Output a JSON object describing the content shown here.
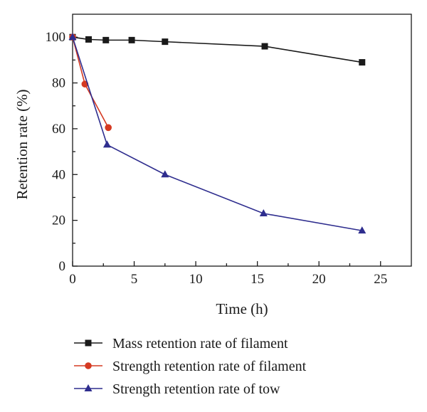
{
  "chart_data": {
    "type": "line",
    "title": "",
    "xlabel": "Time (h)",
    "ylabel": "Retention rate (%)",
    "xlim": [
      0,
      27.5
    ],
    "ylim": [
      0,
      110
    ],
    "xticks": [
      0,
      5,
      10,
      15,
      20,
      25
    ],
    "yticks": [
      0,
      20,
      40,
      60,
      80,
      100
    ],
    "xtick_labels": [
      "0",
      "5",
      "10",
      "15",
      "20",
      "25"
    ],
    "ytick_labels": [
      "0",
      "20",
      "40",
      "60",
      "80",
      "100"
    ],
    "grid": false,
    "legend_position": "bottom",
    "series": [
      {
        "name": "Mass retention rate of filament",
        "color": "#1a1a1a",
        "marker": "square",
        "x": [
          0,
          1.3,
          2.7,
          4.8,
          7.5,
          15.6,
          23.5
        ],
        "y": [
          100,
          99,
          98.7,
          98.7,
          98,
          96,
          89
        ]
      },
      {
        "name": "Strength retention rate of filament",
        "color": "#d53a22",
        "marker": "circle",
        "x": [
          0,
          1.0,
          2.9
        ],
        "y": [
          100,
          79.5,
          60.5
        ]
      },
      {
        "name": "Strength retention rate of tow",
        "color": "#2e2d8e",
        "marker": "triangle",
        "x": [
          0,
          2.8,
          7.5,
          15.5,
          23.5
        ],
        "y": [
          100,
          53,
          40,
          23,
          15.5
        ]
      }
    ]
  }
}
